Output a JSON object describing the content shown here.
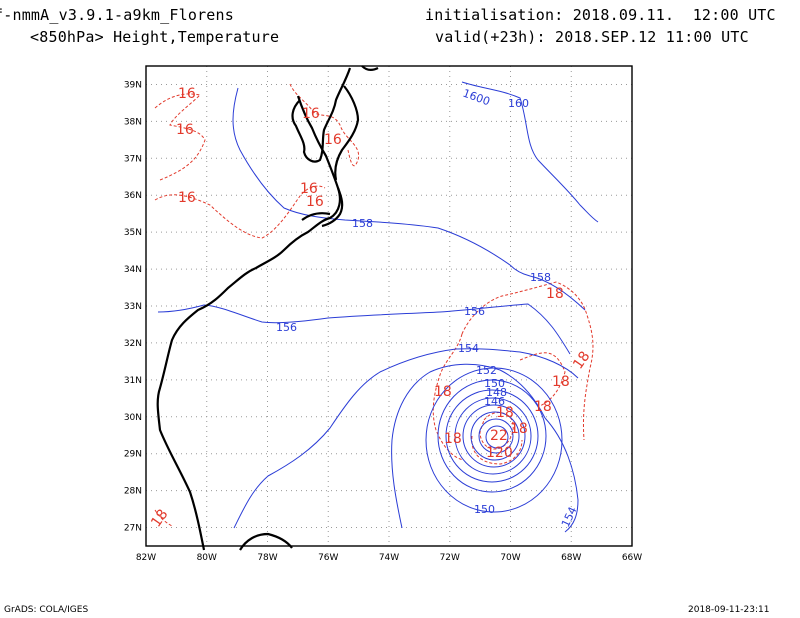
{
  "header": {
    "model": "f-nmmA_v3.9.1-a9km_Florens",
    "field": "<850hPa> Height,Temperature",
    "init": "initialisation: 2018.09.11.  12:00 UTC",
    "valid": "valid(+23h): 2018.SEP.12 11:00 UTC"
  },
  "footer": {
    "left": "GrADS: COLA/IGES",
    "right": "2018-09-11-23:11"
  },
  "map": {
    "lon_range": [
      -82,
      -66
    ],
    "lat_range": [
      26.5,
      39.5
    ],
    "lon_ticks": [
      "82W",
      "80W",
      "78W",
      "76W",
      "74W",
      "72W",
      "70W",
      "68W",
      "66W"
    ],
    "lat_ticks": [
      "27N",
      "28N",
      "29N",
      "30N",
      "31N",
      "32N",
      "33N",
      "34N",
      "35N",
      "36N",
      "37N",
      "38N",
      "39N"
    ],
    "height_color": "#2b3dd6",
    "temp_color": "#e23a2c",
    "coast_color": "#000000",
    "height_labels": [
      "1600",
      "160",
      "158",
      "158",
      "156",
      "156",
      "154",
      "152",
      "150",
      "148",
      "146",
      "150",
      "154"
    ],
    "temp_labels": [
      "16",
      "16",
      "16",
      "16",
      "16",
      "16",
      "16",
      "18",
      "18",
      "18",
      "18",
      "18",
      "18",
      "18",
      "22",
      "120",
      "18",
      "18"
    ]
  }
}
